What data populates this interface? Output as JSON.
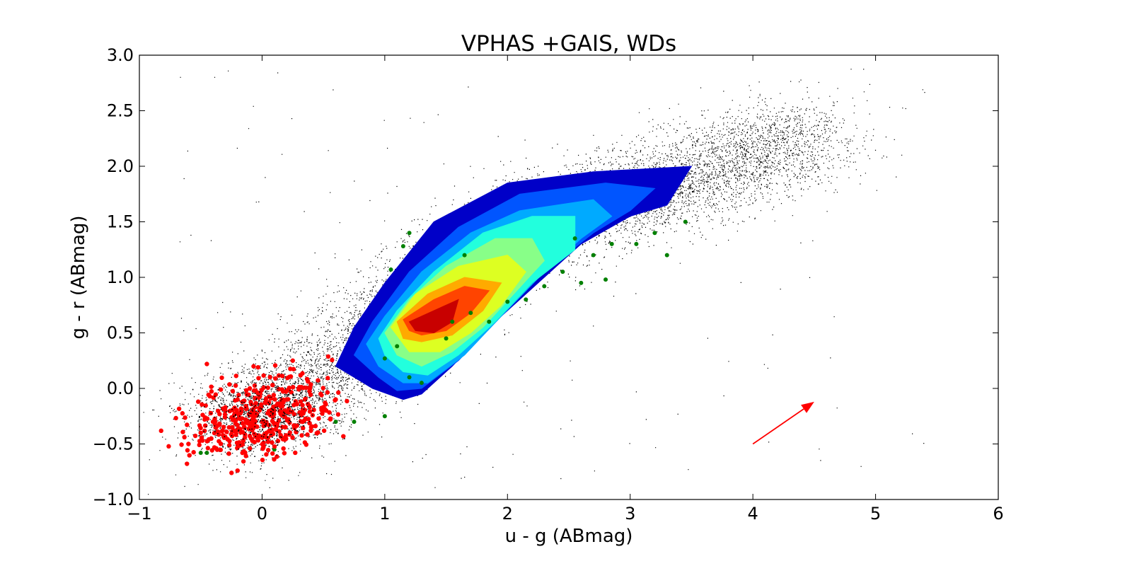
{
  "chart_data": {
    "type": "scatter",
    "title": "VPHAS +GAIS, WDs",
    "xlabel": "u - g (ABmag)",
    "ylabel": "g - r (ABmag)",
    "xlim": [
      -1,
      6
    ],
    "ylim": [
      -1.0,
      3.0
    ],
    "xticks": [
      -1,
      0,
      1,
      2,
      3,
      4,
      5,
      6
    ],
    "xtick_labels": [
      "−1",
      "0",
      "1",
      "2",
      "3",
      "4",
      "5",
      "6"
    ],
    "yticks": [
      -1.0,
      -0.5,
      0.0,
      0.5,
      1.0,
      1.5,
      2.0,
      2.5,
      3.0
    ],
    "ytick_labels": [
      "−1.0",
      "−0.5",
      "0.0",
      "0.5",
      "1.0",
      "1.5",
      "2.0",
      "2.5",
      "3.0"
    ],
    "grid": false,
    "legend": "none",
    "background_sample": {
      "color": "#000000",
      "description_locus": [
        {
          "x": -0.3,
          "y": -0.4
        },
        {
          "x": 0.5,
          "y": 0.1
        },
        {
          "x": 1.5,
          "y": 1.0
        },
        {
          "x": 2.5,
          "y": 1.6
        },
        {
          "x": 3.5,
          "y": 1.9
        },
        {
          "x": 4.5,
          "y": 2.3
        }
      ]
    },
    "density_contours": {
      "levels": [
        {
          "color": "#0000c8",
          "polygon": [
            [
              0.6,
              0.2
            ],
            [
              0.75,
              0.55
            ],
            [
              1.0,
              0.95
            ],
            [
              1.4,
              1.5
            ],
            [
              2.0,
              1.85
            ],
            [
              2.7,
              1.95
            ],
            [
              3.5,
              2.0
            ],
            [
              3.3,
              1.65
            ],
            [
              3.0,
              1.55
            ],
            [
              2.6,
              1.3
            ],
            [
              2.3,
              1.0
            ],
            [
              1.9,
              0.6
            ],
            [
              1.55,
              0.2
            ],
            [
              1.3,
              -0.05
            ],
            [
              1.15,
              -0.1
            ],
            [
              0.9,
              0.0
            ]
          ]
        },
        {
          "color": "#0055ff",
          "polygon": [
            [
              0.75,
              0.3
            ],
            [
              0.9,
              0.6
            ],
            [
              1.2,
              1.05
            ],
            [
              1.6,
              1.45
            ],
            [
              2.1,
              1.75
            ],
            [
              2.8,
              1.85
            ],
            [
              3.2,
              1.8
            ],
            [
              3.0,
              1.6
            ],
            [
              2.7,
              1.4
            ],
            [
              2.3,
              1.05
            ],
            [
              1.95,
              0.65
            ],
            [
              1.6,
              0.25
            ],
            [
              1.3,
              0.0
            ],
            [
              1.1,
              -0.02
            ],
            [
              0.95,
              0.1
            ]
          ]
        },
        {
          "color": "#00aaff",
          "polygon": [
            [
              0.85,
              0.4
            ],
            [
              1.0,
              0.65
            ],
            [
              1.3,
              1.05
            ],
            [
              1.7,
              1.4
            ],
            [
              2.1,
              1.6
            ],
            [
              2.7,
              1.7
            ],
            [
              2.85,
              1.55
            ],
            [
              2.6,
              1.35
            ],
            [
              2.3,
              1.05
            ],
            [
              1.95,
              0.65
            ],
            [
              1.65,
              0.3
            ],
            [
              1.35,
              0.05
            ],
            [
              1.15,
              0.05
            ],
            [
              0.95,
              0.2
            ]
          ]
        },
        {
          "color": "#22ffdd",
          "polygon": [
            [
              0.95,
              0.45
            ],
            [
              1.1,
              0.7
            ],
            [
              1.4,
              1.05
            ],
            [
              1.8,
              1.4
            ],
            [
              2.2,
              1.55
            ],
            [
              2.55,
              1.55
            ],
            [
              2.55,
              1.25
            ],
            [
              2.2,
              0.95
            ],
            [
              1.9,
              0.6
            ],
            [
              1.6,
              0.3
            ],
            [
              1.35,
              0.12
            ],
            [
              1.15,
              0.15
            ],
            [
              1.0,
              0.3
            ]
          ]
        },
        {
          "color": "#88ff88",
          "polygon": [
            [
              1.0,
              0.5
            ],
            [
              1.2,
              0.8
            ],
            [
              1.5,
              1.1
            ],
            [
              1.9,
              1.35
            ],
            [
              2.2,
              1.35
            ],
            [
              2.3,
              1.15
            ],
            [
              2.05,
              0.85
            ],
            [
              1.8,
              0.55
            ],
            [
              1.55,
              0.33
            ],
            [
              1.3,
              0.2
            ],
            [
              1.1,
              0.3
            ]
          ]
        },
        {
          "color": "#ddff22",
          "polygon": [
            [
              1.05,
              0.55
            ],
            [
              1.25,
              0.85
            ],
            [
              1.6,
              1.1
            ],
            [
              2.0,
              1.2
            ],
            [
              2.15,
              1.05
            ],
            [
              1.95,
              0.75
            ],
            [
              1.7,
              0.5
            ],
            [
              1.45,
              0.33
            ],
            [
              1.2,
              0.33
            ]
          ]
        },
        {
          "color": "#ffaa00",
          "polygon": [
            [
              1.1,
              0.6
            ],
            [
              1.35,
              0.85
            ],
            [
              1.65,
              1.0
            ],
            [
              1.95,
              0.95
            ],
            [
              1.8,
              0.7
            ],
            [
              1.55,
              0.48
            ],
            [
              1.3,
              0.42
            ],
            [
              1.15,
              0.45
            ]
          ]
        },
        {
          "color": "#ff4400",
          "polygon": [
            [
              1.15,
              0.62
            ],
            [
              1.4,
              0.8
            ],
            [
              1.65,
              0.92
            ],
            [
              1.85,
              0.88
            ],
            [
              1.7,
              0.68
            ],
            [
              1.5,
              0.52
            ],
            [
              1.3,
              0.48
            ],
            [
              1.2,
              0.52
            ]
          ]
        },
        {
          "color": "#c80000",
          "polygon": [
            [
              1.2,
              0.6
            ],
            [
              1.4,
              0.7
            ],
            [
              1.6,
              0.8
            ],
            [
              1.55,
              0.6
            ],
            [
              1.4,
              0.5
            ],
            [
              1.25,
              0.52
            ]
          ]
        }
      ]
    },
    "series": [
      {
        "color": "#ff0000",
        "center": [
          0.0,
          -0.25
        ],
        "points_sample": [
          [
            -0.6,
            -0.5
          ],
          [
            -0.5,
            -0.4
          ],
          [
            -0.4,
            -0.3
          ],
          [
            -0.3,
            -0.2
          ],
          [
            -0.2,
            -0.1
          ],
          [
            -0.1,
            0.0
          ],
          [
            0.0,
            -0.3
          ],
          [
            0.1,
            -0.2
          ],
          [
            0.2,
            -0.1
          ],
          [
            0.3,
            0.0
          ],
          [
            0.4,
            -0.35
          ],
          [
            0.5,
            -0.2
          ],
          [
            -0.2,
            -0.74
          ],
          [
            -0.45,
            0.22
          ],
          [
            0.25,
            0.25
          ],
          [
            0.6,
            -0.1
          ]
        ]
      },
      {
        "color": "#008000",
        "points_sample": [
          [
            -0.5,
            -0.58
          ],
          [
            -0.45,
            -0.58
          ],
          [
            0.1,
            -0.55
          ],
          [
            0.6,
            -0.3
          ],
          [
            0.75,
            -0.3
          ],
          [
            1.0,
            -0.25
          ],
          [
            1.0,
            0.27
          ],
          [
            1.1,
            0.38
          ],
          [
            1.2,
            0.1
          ],
          [
            1.3,
            0.05
          ],
          [
            1.5,
            0.45
          ],
          [
            1.55,
            0.6
          ],
          [
            1.7,
            0.68
          ],
          [
            1.85,
            0.6
          ],
          [
            2.0,
            0.78
          ],
          [
            2.15,
            0.8
          ],
          [
            2.3,
            0.92
          ],
          [
            2.45,
            1.05
          ],
          [
            2.55,
            1.35
          ],
          [
            2.7,
            1.2
          ],
          [
            2.85,
            1.3
          ],
          [
            3.05,
            1.3
          ],
          [
            3.2,
            1.4
          ],
          [
            3.3,
            1.2
          ],
          [
            3.45,
            1.5
          ],
          [
            1.15,
            1.28
          ],
          [
            1.05,
            1.07
          ],
          [
            1.2,
            1.4
          ],
          [
            1.65,
            1.2
          ],
          [
            2.6,
            0.95
          ],
          [
            2.8,
            0.98
          ]
        ]
      }
    ],
    "annotations": [
      {
        "type": "arrow",
        "color": "#ff0000",
        "from": [
          4.0,
          -0.5
        ],
        "to": [
          4.5,
          -0.12
        ]
      }
    ]
  }
}
